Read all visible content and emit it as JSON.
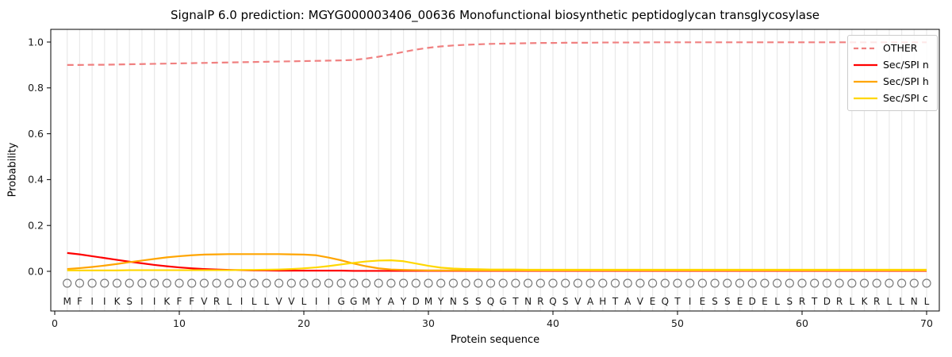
{
  "title": "SignalP 6.0 prediction: MGYG000003406_00636 Monofunctional biosynthetic peptidoglycan transglycosylase",
  "style": {
    "background": "#ffffff",
    "grid_color": "#e9e9e9",
    "spine_color": "#000000",
    "tick_label_color": "#1a1a1a",
    "sequence_letter_color": "#1a1a1a",
    "circle_marker_color": "#7a7a7a",
    "legend_border_color": "#cccccc"
  },
  "chart_data": {
    "type": "line",
    "title": "SignalP 6.0 prediction: MGYG000003406_00636 Monofunctional biosynthetic peptidoglycan transglycosylase",
    "xlabel": "Protein sequence",
    "ylabel": "Probability",
    "xlim": [
      -0.3,
      71.0
    ],
    "ylim": [
      -0.17,
      1.055
    ],
    "x_ticks": [
      0,
      10,
      20,
      30,
      40,
      50,
      60,
      70
    ],
    "x_tick_labels": [
      "0",
      "10",
      "20",
      "30",
      "40",
      "50",
      "60",
      "70"
    ],
    "y_ticks": [
      0.0,
      0.2,
      0.4,
      0.6,
      0.8,
      1.0
    ],
    "y_tick_labels": [
      "0.0",
      "0.2",
      "0.4",
      "0.6",
      "0.8",
      "1.0"
    ],
    "grid": "vertical-per-residue",
    "legend_position": "upper-right",
    "x_start": 1,
    "sequence": "MFIIKSIIKFFVRLILLVVLIIGGMYAYDMYNSSQGTNRQSVAHTAVEQTIESSEDELSRTDRLKRLLNL",
    "series": [
      {
        "name": "OTHER",
        "color": "#f08080",
        "style": "dashed",
        "values": [
          0.9,
          0.9,
          0.901,
          0.901,
          0.902,
          0.903,
          0.904,
          0.905,
          0.906,
          0.907,
          0.908,
          0.909,
          0.91,
          0.911,
          0.912,
          0.913,
          0.914,
          0.915,
          0.916,
          0.917,
          0.918,
          0.919,
          0.92,
          0.922,
          0.928,
          0.936,
          0.946,
          0.957,
          0.967,
          0.975,
          0.981,
          0.985,
          0.988,
          0.99,
          0.992,
          0.993,
          0.994,
          0.995,
          0.996,
          0.996,
          0.997,
          0.997,
          0.997,
          0.998,
          0.998,
          0.998,
          0.998,
          0.999,
          0.999,
          0.999,
          0.999,
          0.999,
          0.999,
          0.999,
          0.999,
          0.999,
          0.999,
          0.999,
          0.999,
          0.999,
          0.999,
          0.999,
          0.999,
          0.999,
          0.999,
          0.999,
          0.999,
          0.999,
          0.999,
          0.999
        ]
      },
      {
        "name": "Sec/SPI n",
        "color": "#ff0000",
        "style": "solid",
        "values": [
          0.08,
          0.074,
          0.066,
          0.058,
          0.05,
          0.042,
          0.035,
          0.028,
          0.022,
          0.017,
          0.013,
          0.01,
          0.008,
          0.006,
          0.005,
          0.004,
          0.004,
          0.003,
          0.003,
          0.003,
          0.003,
          0.003,
          0.003,
          0.002,
          0.002,
          0.002,
          0.002,
          0.002,
          0.002,
          0.002,
          0.002,
          0.002,
          0.002,
          0.002,
          0.002,
          0.002,
          0.002,
          0.002,
          0.002,
          0.002,
          0.002,
          0.002,
          0.002,
          0.002,
          0.002,
          0.002,
          0.002,
          0.002,
          0.002,
          0.002,
          0.002,
          0.002,
          0.002,
          0.002,
          0.002,
          0.002,
          0.002,
          0.002,
          0.002,
          0.002,
          0.002,
          0.002,
          0.002,
          0.002,
          0.002,
          0.002,
          0.002,
          0.002,
          0.002,
          0.002
        ]
      },
      {
        "name": "Sec/SPI h",
        "color": "#ffa500",
        "style": "solid",
        "values": [
          0.01,
          0.014,
          0.019,
          0.025,
          0.032,
          0.04,
          0.047,
          0.054,
          0.061,
          0.066,
          0.07,
          0.073,
          0.074,
          0.075,
          0.075,
          0.075,
          0.075,
          0.075,
          0.074,
          0.073,
          0.07,
          0.06,
          0.048,
          0.034,
          0.022,
          0.013,
          0.008,
          0.006,
          0.005,
          0.004,
          0.004,
          0.004,
          0.004,
          0.004,
          0.004,
          0.004,
          0.004,
          0.004,
          0.004,
          0.004,
          0.004,
          0.004,
          0.004,
          0.004,
          0.004,
          0.004,
          0.004,
          0.004,
          0.004,
          0.004,
          0.004,
          0.004,
          0.004,
          0.004,
          0.004,
          0.004,
          0.004,
          0.004,
          0.004,
          0.004,
          0.004,
          0.004,
          0.004,
          0.004,
          0.004,
          0.004,
          0.004,
          0.004,
          0.004,
          0.004
        ]
      },
      {
        "name": "Sec/SPI c",
        "color": "#ffd700",
        "style": "solid",
        "values": [
          0.004,
          0.004,
          0.004,
          0.004,
          0.004,
          0.005,
          0.005,
          0.005,
          0.005,
          0.005,
          0.005,
          0.005,
          0.005,
          0.005,
          0.006,
          0.006,
          0.007,
          0.008,
          0.01,
          0.013,
          0.017,
          0.023,
          0.03,
          0.037,
          0.043,
          0.047,
          0.048,
          0.044,
          0.034,
          0.024,
          0.016,
          0.012,
          0.01,
          0.009,
          0.008,
          0.008,
          0.008,
          0.007,
          0.007,
          0.007,
          0.007,
          0.007,
          0.007,
          0.007,
          0.007,
          0.007,
          0.007,
          0.007,
          0.007,
          0.007,
          0.007,
          0.007,
          0.007,
          0.007,
          0.007,
          0.007,
          0.007,
          0.007,
          0.007,
          0.007,
          0.007,
          0.007,
          0.007,
          0.007,
          0.007,
          0.007,
          0.007,
          0.007,
          0.007,
          0.007
        ]
      }
    ]
  },
  "legend": {
    "items": [
      "OTHER",
      "Sec/SPI n",
      "Sec/SPI h",
      "Sec/SPI c"
    ]
  }
}
